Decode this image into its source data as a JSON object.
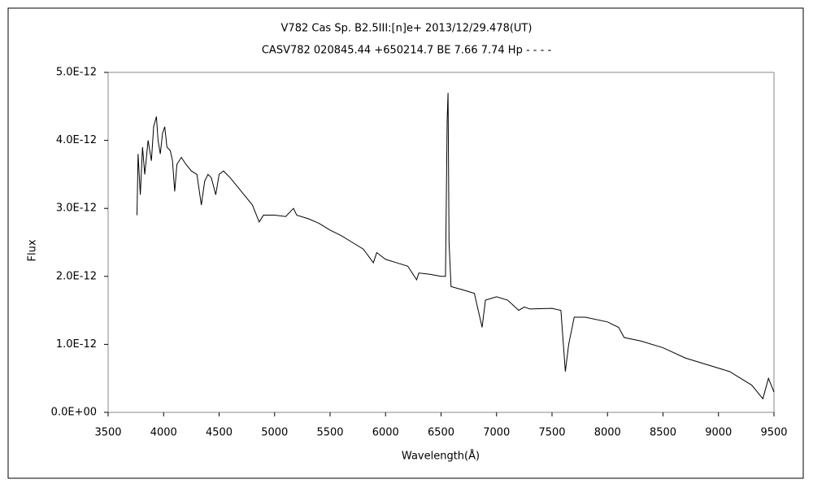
{
  "chart_data": {
    "type": "line",
    "title": "V782 Cas    Sp. B2.5III:[n]e+    2013/12/29.478(UT)",
    "subtitle": "CASV782 020845.44 +650214.7 BE 7.66  7.74 Hp - - - -",
    "x_label": "Wavelength(Å)",
    "y_label": "Flux",
    "color": "#000000",
    "x": [
      3760,
      3770,
      3790,
      3810,
      3830,
      3860,
      3890,
      3910,
      3935,
      3950,
      3970,
      3990,
      4010,
      4030,
      4060,
      4080,
      4100,
      4120,
      4160,
      4200,
      4250,
      4300,
      4340,
      4370,
      4400,
      4430,
      4470,
      4500,
      4540,
      4600,
      4650,
      4700,
      4750,
      4800,
      4861,
      4900,
      5000,
      5100,
      5170,
      5200,
      5300,
      5400,
      5500,
      5600,
      5700,
      5800,
      5890,
      5920,
      6000,
      6100,
      6200,
      6280,
      6300,
      6400,
      6500,
      6540,
      6555,
      6563,
      6572,
      6590,
      6700,
      6800,
      6870,
      6900,
      7000,
      7100,
      7200,
      7250,
      7300,
      7500,
      7580,
      7620,
      7650,
      7700,
      7800,
      8000,
      8100,
      8150,
      8300,
      8500,
      8700,
      8900,
      9100,
      9300,
      9400,
      9450,
      9500
    ],
    "values": [
      2.9e-12,
      3.8e-12,
      3.2e-12,
      3.9e-12,
      3.5e-12,
      4e-12,
      3.7e-12,
      4.2e-12,
      4.35e-12,
      4e-12,
      3.8e-12,
      4.1e-12,
      4.2e-12,
      3.9e-12,
      3.85e-12,
      3.7e-12,
      3.25e-12,
      3.65e-12,
      3.75e-12,
      3.65e-12,
      3.55e-12,
      3.5e-12,
      3.05e-12,
      3.4e-12,
      3.5e-12,
      3.45e-12,
      3.2e-12,
      3.5e-12,
      3.55e-12,
      3.45e-12,
      3.35e-12,
      3.25e-12,
      3.15e-12,
      3.05e-12,
      2.8e-12,
      2.9e-12,
      2.9e-12,
      2.88e-12,
      3e-12,
      2.9e-12,
      2.85e-12,
      2.78e-12,
      2.68e-12,
      2.6e-12,
      2.5e-12,
      2.4e-12,
      2.2e-12,
      2.35e-12,
      2.25e-12,
      2.2e-12,
      2.15e-12,
      1.95e-12,
      2.05e-12,
      2.03e-12,
      2e-12,
      2e-12,
      4.3e-12,
      4.7e-12,
      2.5e-12,
      1.85e-12,
      1.8e-12,
      1.75e-12,
      1.25e-12,
      1.65e-12,
      1.7e-12,
      1.65e-12,
      1.5e-12,
      1.55e-12,
      1.52e-12,
      1.53e-12,
      1.5e-12,
      6e-13,
      1e-12,
      1.4e-12,
      1.4e-12,
      1.33e-12,
      1.25e-12,
      1.1e-12,
      1.05e-12,
      9.5e-13,
      8e-13,
      7e-13,
      6e-13,
      4e-13,
      2e-13,
      5e-13,
      3e-13
    ],
    "xlim": [
      3500,
      9500
    ],
    "xticks": [
      3500,
      4000,
      4500,
      5000,
      5500,
      6000,
      6500,
      7000,
      7500,
      8000,
      8500,
      9000,
      9500
    ],
    "ylim": [
      0,
      5e-12
    ],
    "yticks": [
      {
        "value": 0,
        "label": "0.0E+00"
      },
      {
        "value": 1e-12,
        "label": "1.0E-12"
      },
      {
        "value": 2e-12,
        "label": "2.0E-12"
      },
      {
        "value": 3e-12,
        "label": "3.0E-12"
      },
      {
        "value": 4e-12,
        "label": "4.0E-12"
      },
      {
        "value": 5e-12,
        "label": "5.0E-12"
      }
    ],
    "grid": false
  }
}
